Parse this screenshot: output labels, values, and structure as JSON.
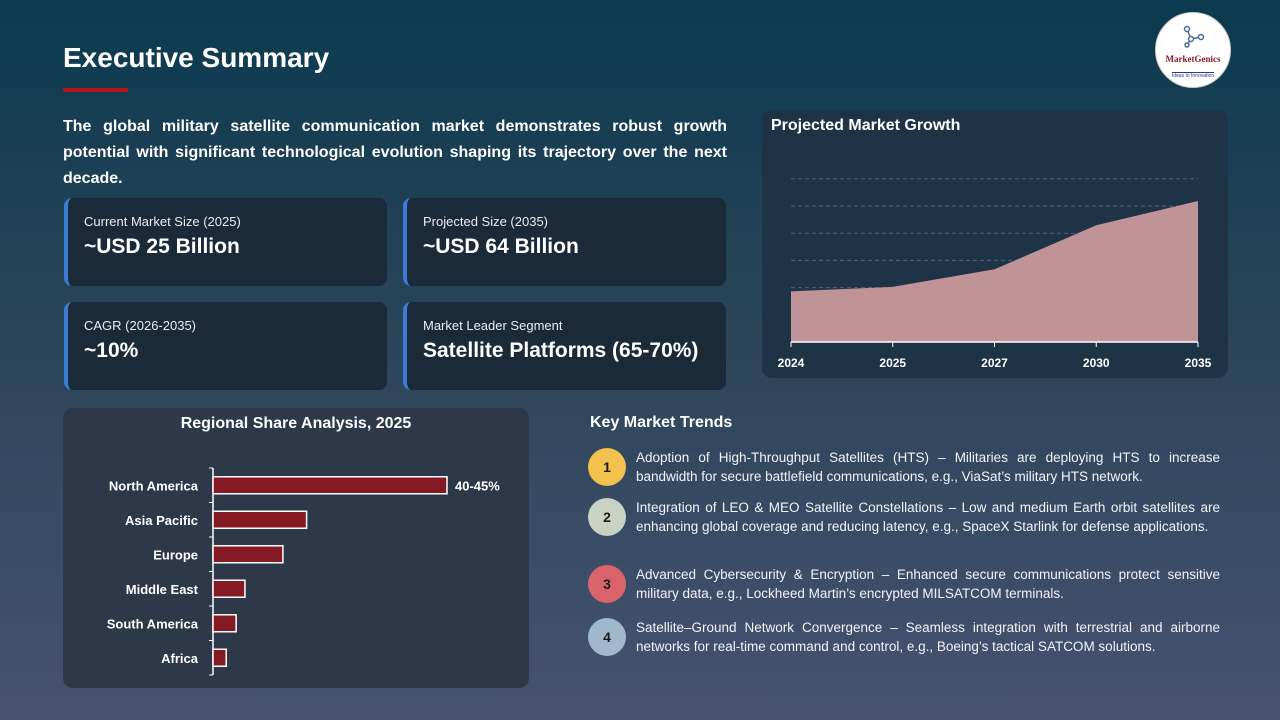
{
  "header": {
    "title": "Executive Summary",
    "logo_text": "MarketGenics",
    "logo_tagline": "Ideas to Innovation"
  },
  "intro": "The global military satellite communication market demonstrates robust growth potential with significant technological evolution shaping its trajectory over the next decade.",
  "cards": [
    {
      "label": "Current Market Size (2025)",
      "value": "~USD 25 Billion"
    },
    {
      "label": "Projected Size (2035)",
      "value": "~USD 64 Billion"
    },
    {
      "label": "CAGR (2026-2035)",
      "value": "~10%"
    },
    {
      "label": "Market Leader Segment",
      "value": "Satellite Platforms (65-70%)"
    }
  ],
  "colors": {
    "accent": "#b5121b",
    "card_border": "#3a7bd5",
    "area_fill": "#c09398",
    "bar_fill": "#861a24"
  },
  "chart_data": [
    {
      "type": "area",
      "title": "Projected Market Growth",
      "categories": [
        "2024",
        "2025",
        "2027",
        "2030",
        "2035"
      ],
      "values": [
        23,
        25,
        33,
        53,
        64
      ],
      "ylim": [
        0,
        74
      ],
      "grid": true,
      "gridline_style": "dashed"
    },
    {
      "type": "bar",
      "orientation": "horizontal",
      "title": "Regional Share Analysis, 2025",
      "categories": [
        "North America",
        "Asia Pacific",
        "Europe",
        "Middle East",
        "South America",
        "Africa"
      ],
      "values": [
        42.5,
        17,
        12.7,
        5.8,
        4.2,
        2.4
      ],
      "data_labels": [
        "40-45%",
        "",
        "",
        "",
        "",
        ""
      ]
    }
  ],
  "trends": {
    "title": "Key Market Trends",
    "items": [
      {
        "num": "1",
        "color": "#f2c14e",
        "text": "Adoption of High-Throughput Satellites (HTS) – Militaries are deploying HTS to increase bandwidth for secure battlefield communications, e.g., ViaSat’s military HTS network."
      },
      {
        "num": "2",
        "color": "#c9d3c4",
        "text": "Integration of LEO & MEO Satellite Constellations – Low and medium Earth orbit satellites are enhancing global coverage and reducing latency, e.g., SpaceX Starlink for defense applications."
      },
      {
        "num": "3",
        "color": "#d9636a",
        "text": "Advanced Cybersecurity & Encryption – Enhanced secure communications protect sensitive military data, e.g., Lockheed Martin’s encrypted MILSATCOM terminals."
      },
      {
        "num": "4",
        "color": "#9fb8cc",
        "text": "Satellite–Ground Network Convergence – Seamless integration with terrestrial and airborne networks for real-time command and control, e.g., Boeing’s tactical SATCOM solutions."
      }
    ]
  }
}
